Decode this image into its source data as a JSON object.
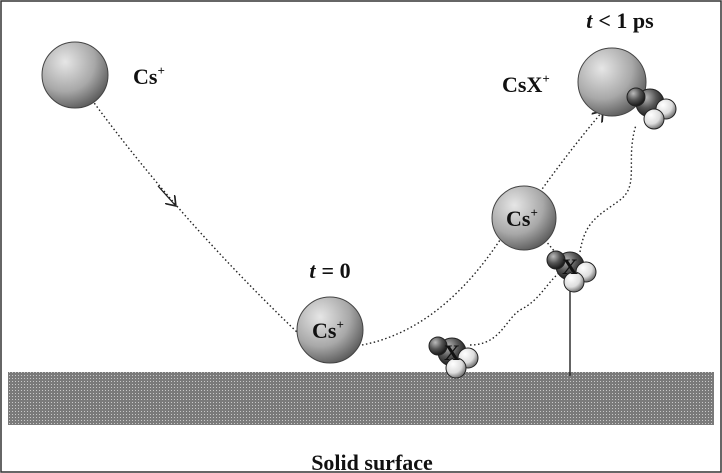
{
  "ions": [
    {
      "label": "Cs",
      "charge": "+"
    },
    {
      "label": "Cs",
      "charge": "+"
    },
    {
      "label": "Cs",
      "charge": "+"
    },
    {
      "label": "CsX",
      "charge": "+"
    }
  ],
  "times": [
    {
      "var": "t",
      "rest": "= 0"
    },
    {
      "var": "t",
      "rest": "< 1 ps"
    }
  ],
  "molecules": [
    {
      "label": "X"
    },
    {
      "label": "X"
    }
  ],
  "surface": {
    "label": "Solid surface"
  }
}
